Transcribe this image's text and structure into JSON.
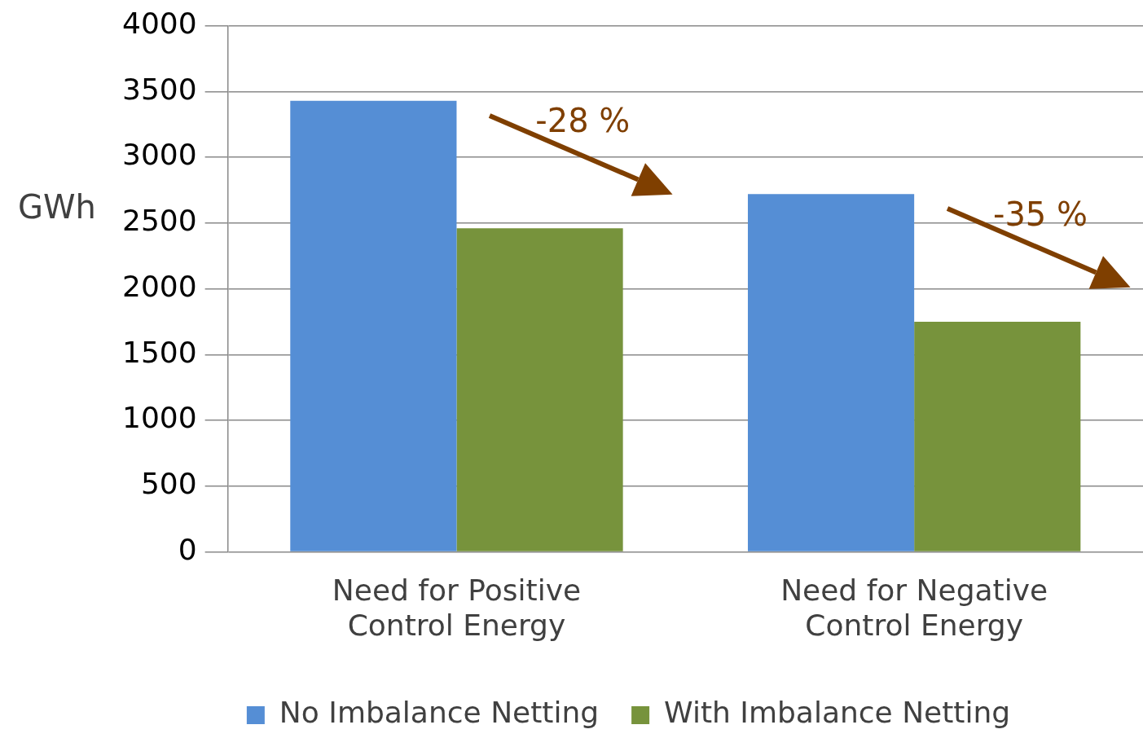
{
  "chart_data": {
    "type": "bar",
    "ylabel": "GWh",
    "categories": [
      "Need for Positive Control Energy",
      "Need for Negative Control Energy"
    ],
    "series": [
      {
        "name": "No Imbalance Netting",
        "color": "#558ed5",
        "values": [
          3430,
          2720
        ]
      },
      {
        "name": "With Imbalance Netting",
        "color": "#77933c",
        "values": [
          2460,
          1750
        ]
      }
    ],
    "ylim": [
      0,
      4000
    ],
    "yticks": [
      0,
      500,
      1000,
      1500,
      2000,
      2500,
      3000,
      3500,
      4000
    ],
    "grid": "y",
    "legend": "bottom",
    "annotations": [
      "-28 %",
      "-35 %"
    ]
  }
}
